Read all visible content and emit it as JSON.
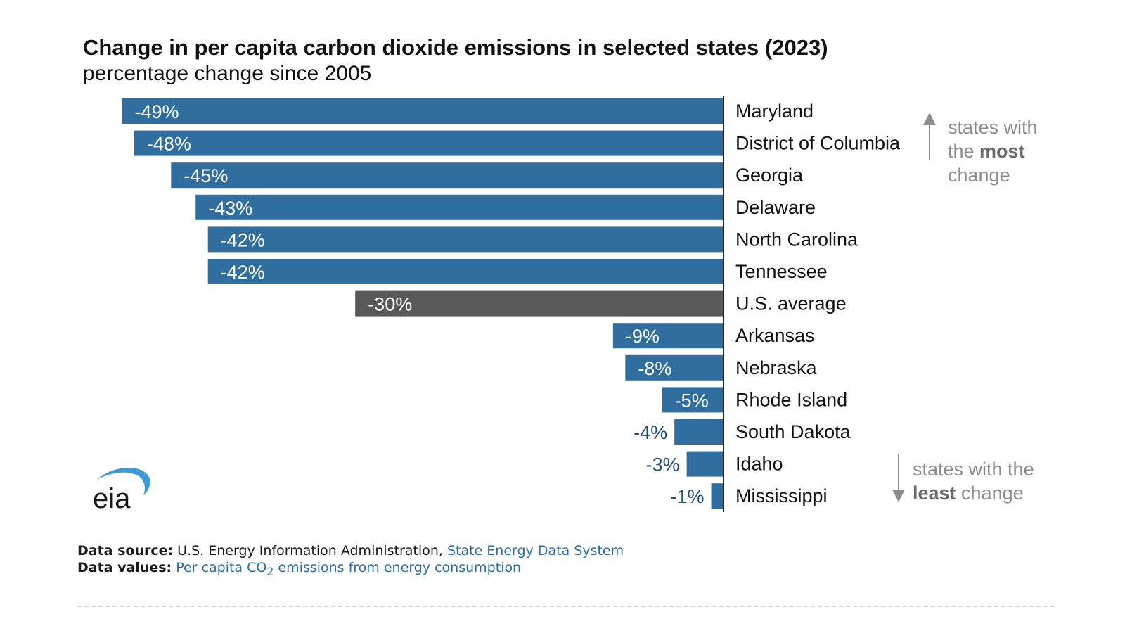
{
  "title": "Change in per capita carbon dioxide emissions in selected states (2023)",
  "subtitle": "percentage change since 2005",
  "colors": {
    "state_bar": "#2f6e9e",
    "average_bar": "#595959",
    "label_inside": "#ffffff",
    "label_outside": "#1f4e79",
    "axis": "#222222",
    "logo_arc": "#3d9ad6"
  },
  "chart_data": {
    "type": "bar",
    "orientation": "horizontal",
    "categories": [
      "Maryland",
      "District of Columbia",
      "Georgia",
      "Delaware",
      "North Carolina",
      "Tennessee",
      "U.S. average",
      "Arkansas",
      "Nebraska",
      "Rhode Island",
      "South Dakota",
      "Idaho",
      "Mississippi"
    ],
    "values": [
      -49,
      -48,
      -45,
      -43,
      -42,
      -42,
      -30,
      -9,
      -8,
      -5,
      -4,
      -3,
      -1
    ],
    "value_labels": [
      "-49%",
      "-48%",
      "-45%",
      "-43%",
      "-42%",
      "-42%",
      "-30%",
      "-9%",
      "-8%",
      "-5%",
      "-4%",
      "-3%",
      "-1%"
    ],
    "highlight": "U.S. average",
    "title": "Change in per capita carbon dioxide emissions in selected states (2023)",
    "subtitle": "percentage change since 2005",
    "xlim": [
      -50,
      0
    ],
    "grid": false,
    "annotations": [
      {
        "text_lines": [
          "states with",
          "the ",
          "most",
          " change"
        ],
        "arrow": "up",
        "position": "top-right"
      },
      {
        "text_lines": [
          "states with the",
          "least",
          " change"
        ],
        "arrow": "down",
        "position": "bottom-right"
      }
    ]
  },
  "notes": {
    "most": {
      "line1": "states with",
      "line2_pre": "the ",
      "line2_bold": "most",
      "line3": "change"
    },
    "least": {
      "line1": "states with the",
      "line2_bold": "least",
      "line2_post": " change"
    }
  },
  "logo": {
    "text": "eia"
  },
  "footer": {
    "source_label": "Data source:",
    "source_text": " U.S. Energy Information Administration, ",
    "source_link": "State Energy Data System",
    "values_label": "Data values:",
    "values_link_pre": " Per capita CO",
    "values_link_sub": "2",
    "values_link_post": " emissions from energy consumption"
  }
}
